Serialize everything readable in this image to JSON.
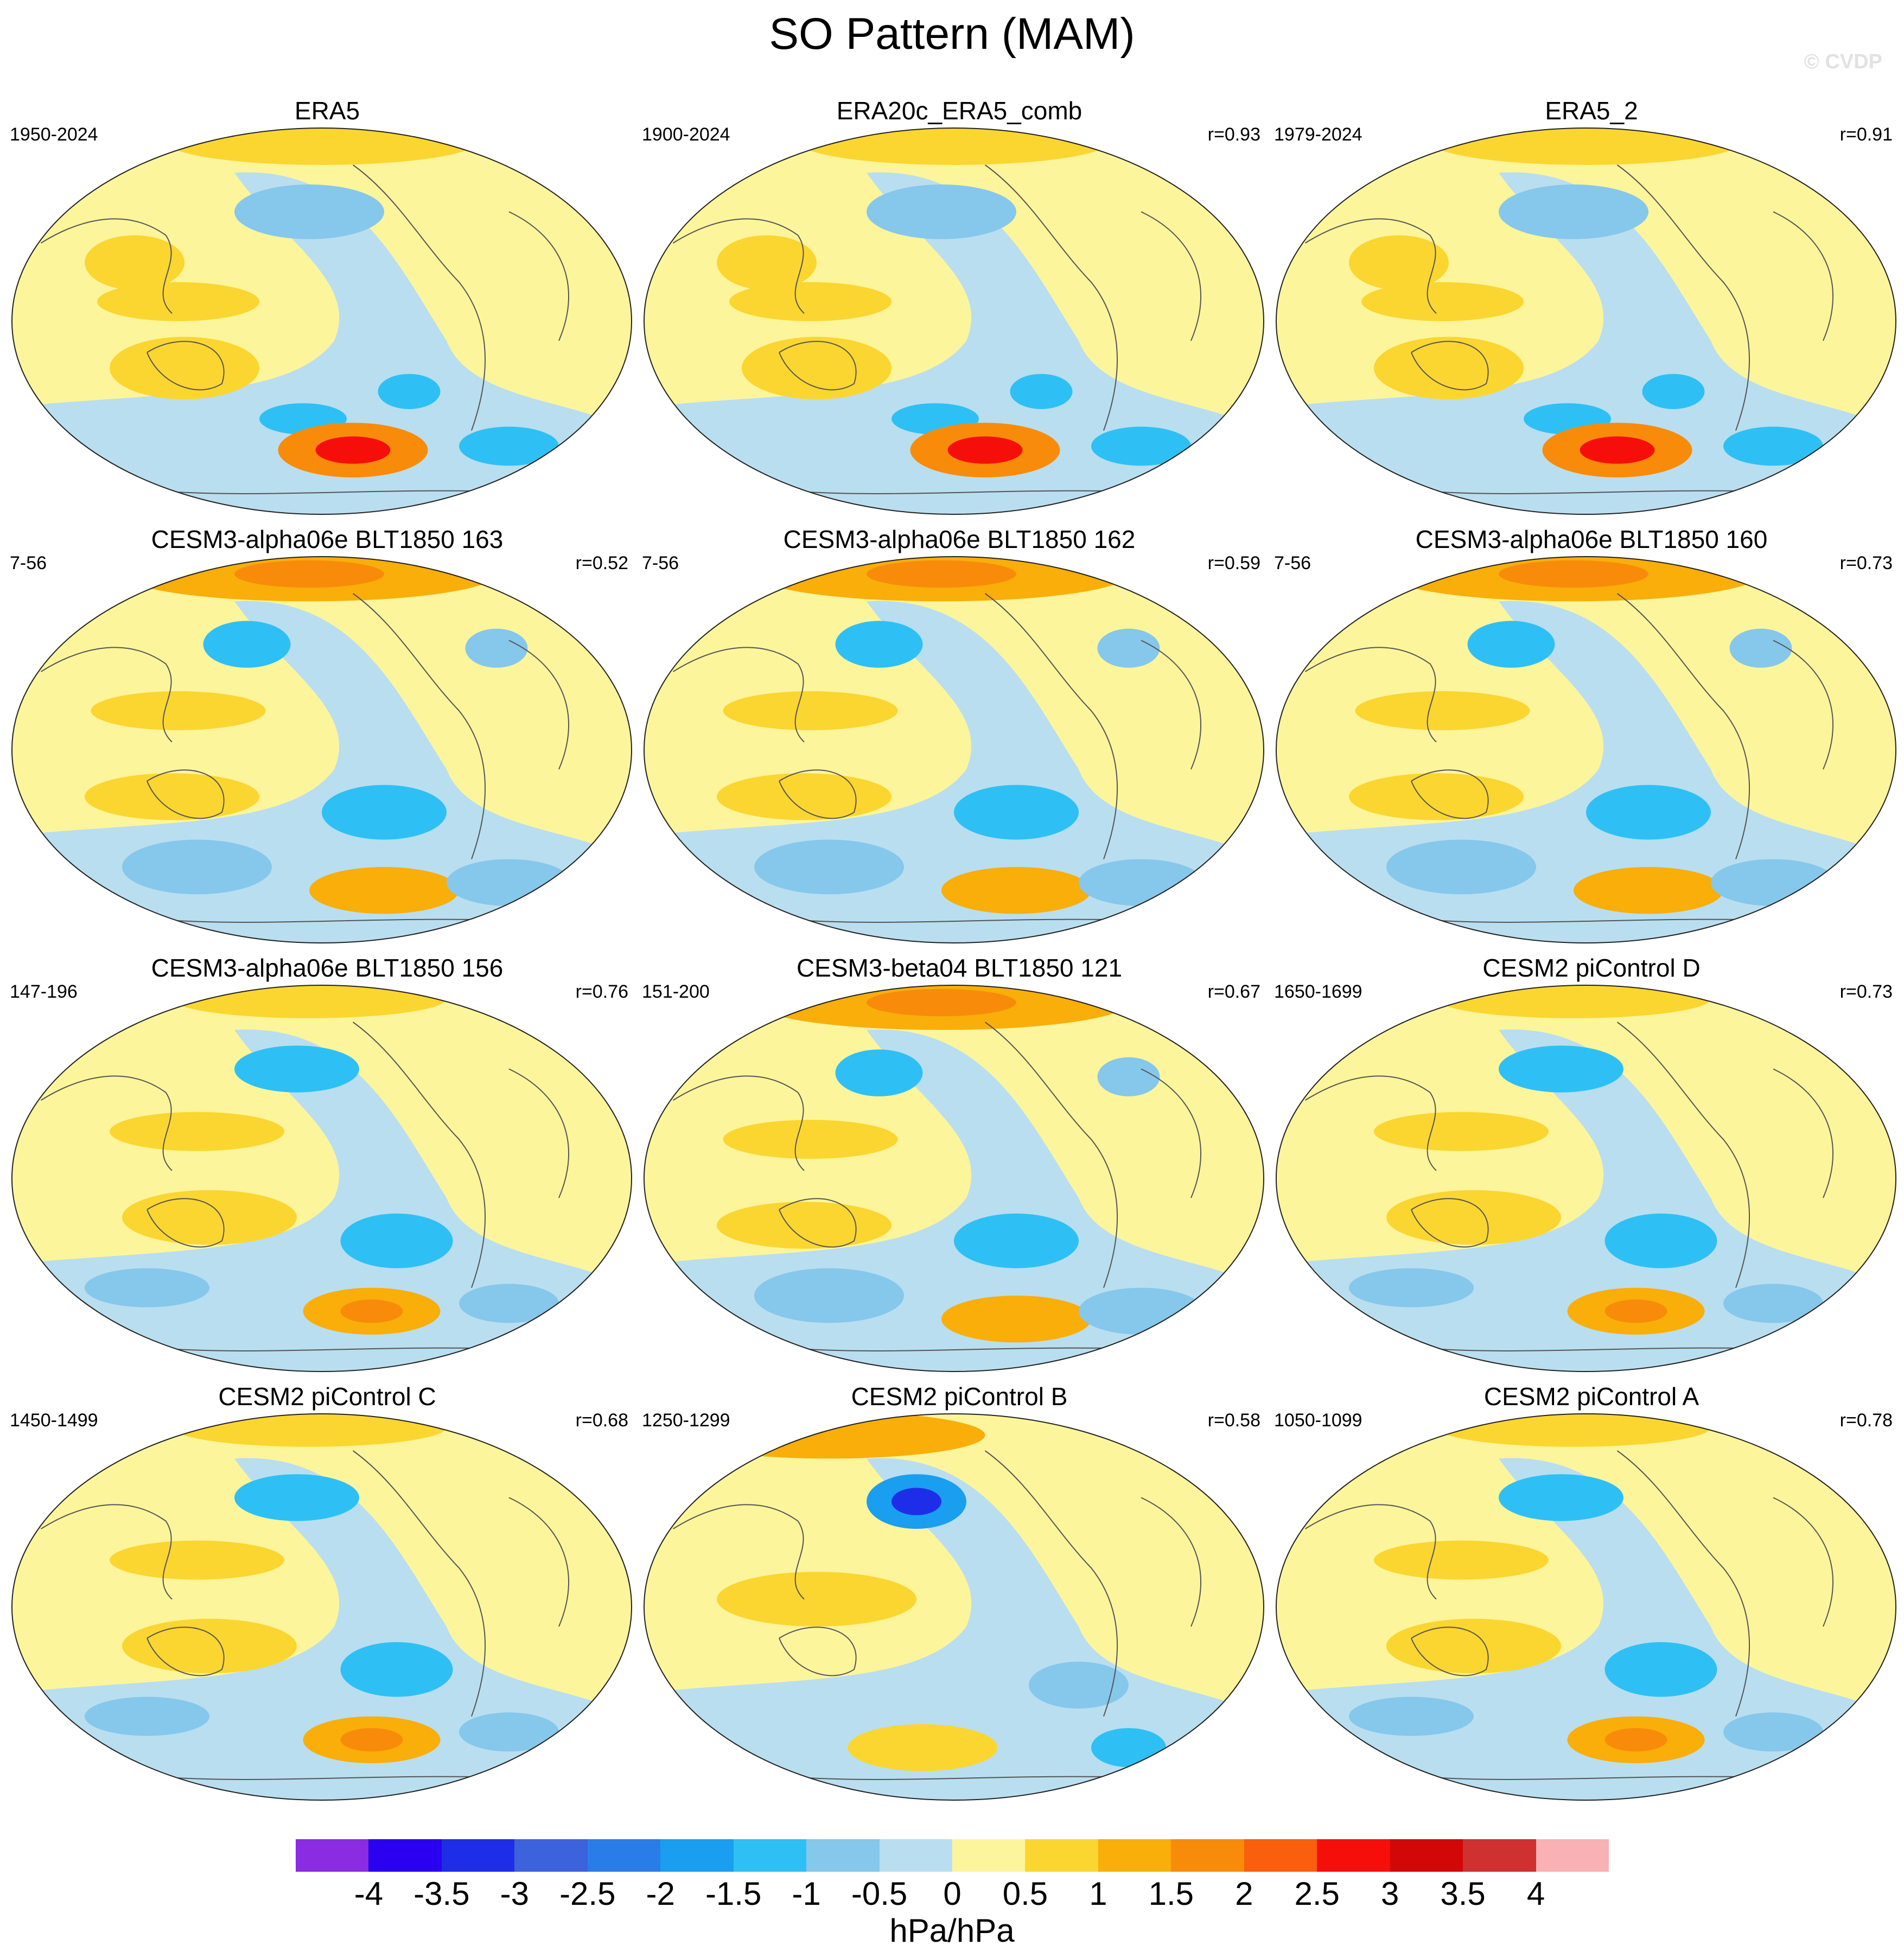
{
  "title": "SO Pattern (MAM)",
  "watermark": "© CVDP",
  "colorbar": {
    "label": "hPa/hPa",
    "ticks": [
      "-4",
      "-3.5",
      "-3",
      "-2.5",
      "-2",
      "-1.5",
      "-1",
      "-0.5",
      "0",
      "0.5",
      "1",
      "1.5",
      "2",
      "2.5",
      "3",
      "3.5",
      "4"
    ],
    "colors": [
      "#8b2be2",
      "#2b00f0",
      "#1e2ee8",
      "#3c62dc",
      "#2a7de8",
      "#1a9ef0",
      "#2ec0f5",
      "#86c7ec",
      "#b9def0",
      "#fdf59c",
      "#fbd631",
      "#f9ae0a",
      "#f98b0a",
      "#f95f0c",
      "#f60f0a",
      "#d20708",
      "#cf3030",
      "#f9b1b4"
    ]
  },
  "chart_data": [
    {
      "type": "heatmap",
      "title": "ERA5",
      "years": "1950-2024",
      "r": "",
      "pattern": "obs"
    },
    {
      "type": "heatmap",
      "title": "ERA20c_ERA5_comb",
      "years": "1900-2024",
      "r": "r=0.93",
      "pattern": "obs"
    },
    {
      "type": "heatmap",
      "title": "ERA5_2",
      "years": "1979-2024",
      "r": "r=0.91",
      "pattern": "obs"
    },
    {
      "type": "heatmap",
      "title": "CESM3-alpha06e BLT1850 163",
      "years": "7-56",
      "r": "r=0.52",
      "pattern": "arctic_high"
    },
    {
      "type": "heatmap",
      "title": "CESM3-alpha06e BLT1850 162",
      "years": "7-56",
      "r": "r=0.59",
      "pattern": "arctic_high"
    },
    {
      "type": "heatmap",
      "title": "CESM3-alpha06e BLT1850 160",
      "years": "7-56",
      "r": "r=0.73",
      "pattern": "arctic_high"
    },
    {
      "type": "heatmap",
      "title": "CESM3-alpha06e BLT1850 156",
      "years": "147-196",
      "r": "r=0.76",
      "pattern": "model"
    },
    {
      "type": "heatmap",
      "title": "CESM3-beta04 BLT1850 121",
      "years": "151-200",
      "r": "r=0.67",
      "pattern": "arctic_high"
    },
    {
      "type": "heatmap",
      "title": "CESM2 piControl D",
      "years": "1650-1699",
      "r": "r=0.73",
      "pattern": "model"
    },
    {
      "type": "heatmap",
      "title": "CESM2 piControl C",
      "years": "1450-1499",
      "r": "r=0.68",
      "pattern": "model"
    },
    {
      "type": "heatmap",
      "title": "CESM2 piControl B",
      "years": "1250-1299",
      "r": "r=0.58",
      "pattern": "aleutian_low"
    },
    {
      "type": "heatmap",
      "title": "CESM2 piControl A",
      "years": "1050-1099",
      "r": "r=0.78",
      "pattern": "model"
    }
  ]
}
